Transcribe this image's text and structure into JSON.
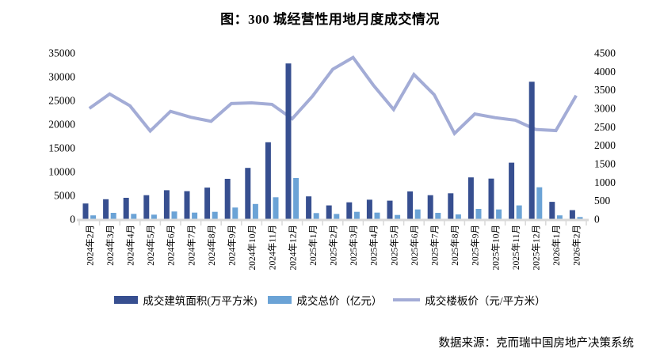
{
  "title": "图：300 城经营性用地月度成交情况",
  "source": "数据来源：克而瑞中国房地产决策系统",
  "colors": {
    "bar_area": "#374f90",
    "bar_price": "#6ba3d6",
    "line_floor_price": "#a3acd6",
    "axis": "#d9d9d9",
    "text": "#000000"
  },
  "legend": {
    "items": [
      {
        "label": "成交建筑面积(万平方米)",
        "type": "bar",
        "color": "#374f90"
      },
      {
        "label": "成交总价（亿元）",
        "type": "bar",
        "color": "#6ba3d6"
      },
      {
        "label": "成交楼板价（元/平方米）",
        "type": "line",
        "color": "#a3acd6"
      }
    ]
  },
  "chart_data": {
    "type": "bar",
    "subtype": "combo-bar-line",
    "title": "图：300 城经营性用地月度成交情况",
    "grid": false,
    "legend_position": "bottom",
    "categories": [
      "2024年2月",
      "2024年3月",
      "2024年4月",
      "2024年5月",
      "2024年6月",
      "2024年7月",
      "2024年8月",
      "2024年9月",
      "2024年10月",
      "2024年11月",
      "2024年12月",
      "2025年1月",
      "2025年2月",
      "2025年3月",
      "2025年4月",
      "2025年5月",
      "2025年6月",
      "2025年7月",
      "2025年8月",
      "2025年9月",
      "2025年10月",
      "2025年11月",
      "2025年12月",
      "2026年1月",
      "2026年2月"
    ],
    "series": [
      {
        "name": "成交建筑面积(万平方米)",
        "type": "bar",
        "axis": "left",
        "color": "#374f90",
        "values": [
          3300,
          4200,
          4500,
          5050,
          6100,
          5900,
          6650,
          8500,
          10800,
          16200,
          32800,
          4800,
          2900,
          3550,
          4100,
          3900,
          5850,
          5050,
          5450,
          8800,
          8550,
          11900,
          28950,
          3650,
          1900
        ]
      },
      {
        "name": "成交总价（亿元）",
        "type": "bar",
        "axis": "left",
        "color": "#6ba3d6",
        "values": [
          800,
          1330,
          1120,
          950,
          1620,
          1390,
          1550,
          2450,
          3200,
          4620,
          8670,
          1280,
          1100,
          1550,
          1390,
          890,
          2050,
          1330,
          1000,
          2170,
          2050,
          2900,
          6720,
          800,
          450
        ]
      },
      {
        "name": "成交楼板价（元/平方米）",
        "type": "line",
        "axis": "right",
        "color": "#a3acd6",
        "values": [
          3000,
          3390,
          3070,
          2390,
          2920,
          2760,
          2650,
          3130,
          3150,
          3110,
          2720,
          3330,
          4060,
          4380,
          3630,
          2970,
          3920,
          3370,
          2320,
          2850,
          2750,
          2680,
          2430,
          2400,
          3350
        ]
      }
    ],
    "left_axis": {
      "min": 0,
      "max": 35000,
      "step": 5000,
      "ticks": [
        0,
        5000,
        10000,
        15000,
        20000,
        25000,
        30000,
        35000
      ]
    },
    "right_axis": {
      "min": 0,
      "max": 4500,
      "step": 500,
      "ticks": [
        0,
        500,
        1000,
        1500,
        2000,
        2500,
        3000,
        3500,
        4000,
        4500
      ]
    }
  }
}
